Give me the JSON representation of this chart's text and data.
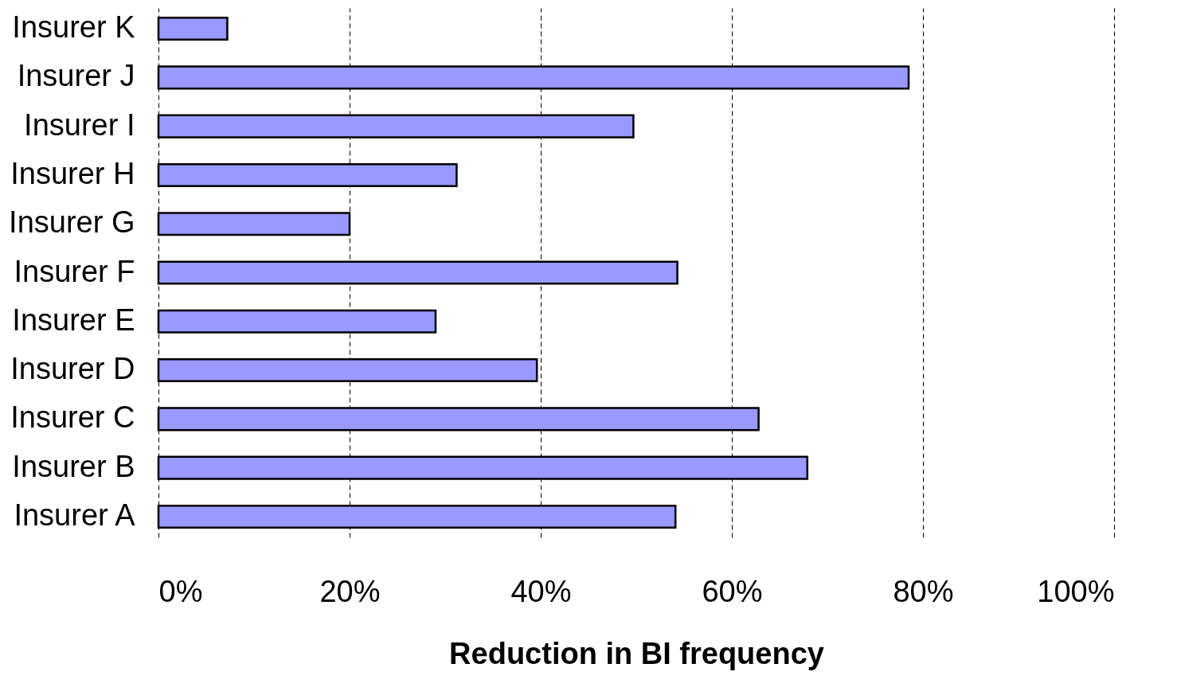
{
  "chart_data": {
    "type": "bar",
    "orientation": "horizontal",
    "xlabel": "Reduction in BI frequency",
    "categories": [
      "Insurer K",
      "Insurer J",
      "Insurer I",
      "Insurer H",
      "Insurer G",
      "Insurer F",
      "Insurer E",
      "Insurer D",
      "Insurer C",
      "Insurer B",
      "Insurer A"
    ],
    "values": [
      7.2,
      78.5,
      49.7,
      31.2,
      20,
      54.3,
      29,
      39.6,
      62.8,
      67.9,
      54.1
    ],
    "color": "#9999ff",
    "xlim": [
      0,
      100
    ],
    "xticks": [
      {
        "value": 0,
        "label": "0%"
      },
      {
        "value": 20,
        "label": "20%"
      },
      {
        "value": 40,
        "label": "40%"
      },
      {
        "value": 60,
        "label": "60%"
      },
      {
        "value": 80,
        "label": "80%"
      },
      {
        "value": 100,
        "label": "100%"
      }
    ],
    "grid": "x"
  }
}
